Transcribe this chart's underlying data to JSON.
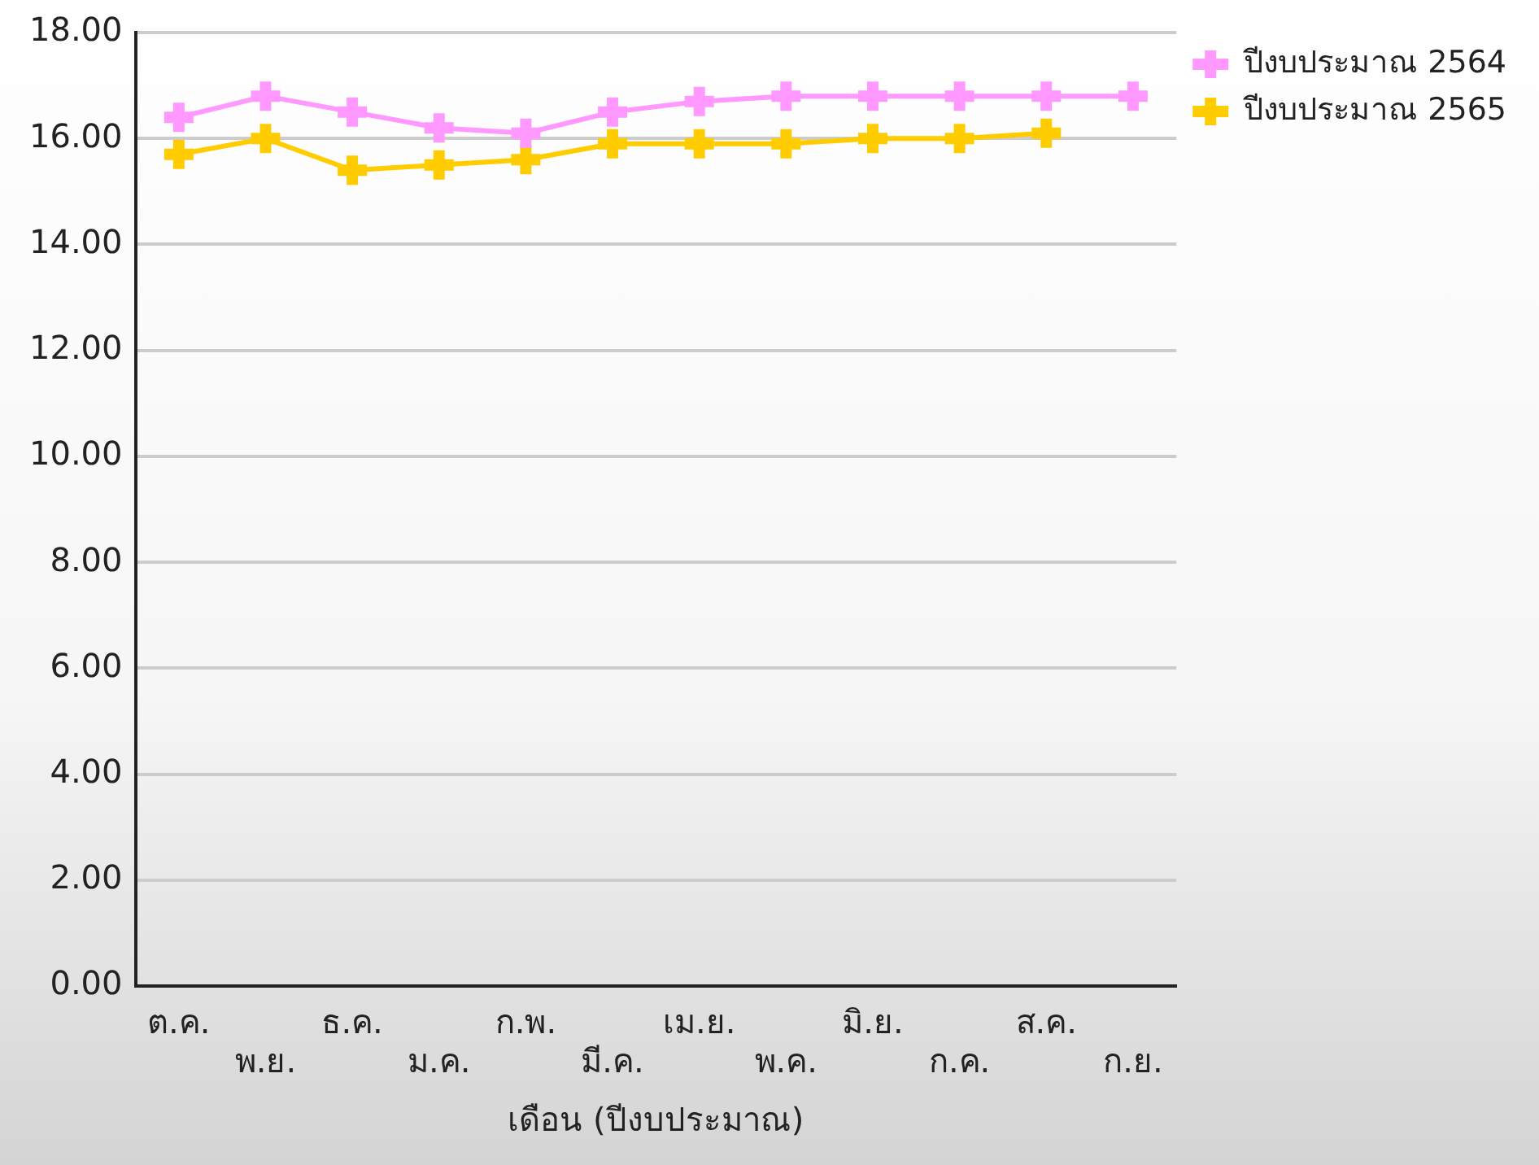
{
  "chart_data": {
    "type": "line",
    "xlabel": "เดือน (ปีงบประมาณ)",
    "categories": [
      "ต.ค.",
      "พ.ย.",
      "ธ.ค.",
      "ม.ค.",
      "ก.พ.",
      "มี.ค.",
      "เม.ย.",
      "พ.ค.",
      "มิ.ย.",
      "ก.ค.",
      "ส.ค.",
      "ก.ย."
    ],
    "series": [
      {
        "name": "ปีงบประมาณ 2564",
        "color": "#ff99ff",
        "values": [
          16.4,
          16.8,
          16.5,
          16.2,
          16.1,
          16.5,
          16.7,
          16.8,
          16.8,
          16.8,
          16.8,
          16.8
        ]
      },
      {
        "name": "ปีงบประมาณ 2565",
        "color": "#ffcc00",
        "values": [
          15.7,
          16.0,
          15.4,
          15.5,
          15.6,
          15.9,
          15.9,
          15.9,
          16.0,
          16.0,
          16.1,
          null
        ]
      }
    ],
    "ylim": [
      0,
      18
    ],
    "yticks": [
      {
        "value": 0,
        "label": "0.00"
      },
      {
        "value": 2,
        "label": "2.00"
      },
      {
        "value": 4,
        "label": "4.00"
      },
      {
        "value": 6,
        "label": "6.00"
      },
      {
        "value": 8,
        "label": "8.00"
      },
      {
        "value": 10,
        "label": "10.00"
      },
      {
        "value": 12,
        "label": "12.00"
      },
      {
        "value": 14,
        "label": "14.00"
      },
      {
        "value": 16,
        "label": "16.00"
      },
      {
        "value": 18,
        "label": "18.00"
      }
    ],
    "grid": "y",
    "legend": "top right",
    "marker": "cross",
    "line_style": "solid"
  }
}
